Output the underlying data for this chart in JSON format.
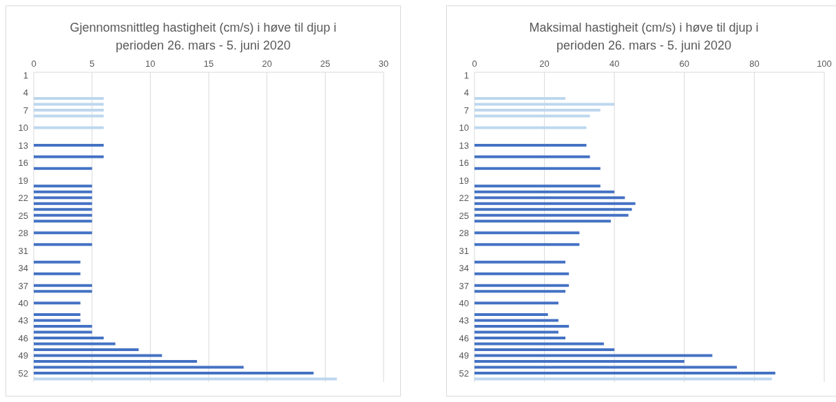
{
  "chart_data": [
    {
      "type": "bar",
      "orientation": "horizontal",
      "title": "Gjennomsnittleg hastigheit (cm/s) i høve til djup i perioden 26. mars - 5. juni 2020",
      "categories": [
        "1",
        null,
        null,
        "4",
        null,
        null,
        "7",
        null,
        null,
        "10",
        null,
        null,
        "13",
        null,
        null,
        "16",
        null,
        null,
        "19",
        null,
        null,
        "22",
        null,
        null,
        "25",
        null,
        null,
        "28",
        null,
        null,
        "31",
        null,
        null,
        "34",
        null,
        null,
        "37",
        null,
        null,
        "40",
        null,
        null,
        "43",
        null,
        null,
        "46",
        null,
        null,
        "49",
        null,
        null,
        "52",
        null
      ],
      "values": [
        null,
        null,
        null,
        null,
        6,
        6,
        6,
        6,
        null,
        6,
        null,
        null,
        6,
        null,
        6,
        null,
        5,
        null,
        null,
        5,
        5,
        5,
        5,
        5,
        5,
        5,
        null,
        5,
        null,
        5,
        null,
        null,
        4,
        null,
        4,
        null,
        5,
        5,
        null,
        4,
        null,
        4,
        4,
        5,
        5,
        6,
        7,
        9,
        11,
        14,
        18,
        24,
        26
      ],
      "colors": [
        "#4472c4",
        "#4472c4",
        "#4472c4",
        "#4472c4",
        "#bdd7ee",
        "#bdd7ee",
        "#bdd7ee",
        "#bdd7ee",
        "#4472c4",
        "#bdd7ee",
        "#4472c4",
        "#4472c4",
        "#4472c4",
        "#4472c4",
        "#4472c4",
        "#4472c4",
        "#4472c4",
        "#4472c4",
        "#4472c4",
        "#4472c4",
        "#4472c4",
        "#4472c4",
        "#4472c4",
        "#4472c4",
        "#4472c4",
        "#4472c4",
        "#4472c4",
        "#4472c4",
        "#4472c4",
        "#4472c4",
        "#4472c4",
        "#4472c4",
        "#4472c4",
        "#4472c4",
        "#4472c4",
        "#4472c4",
        "#4472c4",
        "#4472c4",
        "#4472c4",
        "#4472c4",
        "#4472c4",
        "#4472c4",
        "#4472c4",
        "#4472c4",
        "#4472c4",
        "#4472c4",
        "#4472c4",
        "#4472c4",
        "#4472c4",
        "#4472c4",
        "#4472c4",
        "#4472c4",
        "#bdd7ee"
      ],
      "xlim": [
        0,
        30
      ],
      "xticks": [
        0,
        5,
        10,
        15,
        20,
        25,
        30
      ],
      "grid": "x",
      "legend": false
    },
    {
      "type": "bar",
      "orientation": "horizontal",
      "title": "Maksimal hastigheit (cm/s) i høve til djup i perioden 26. mars - 5. juni 2020",
      "categories": [
        "1",
        null,
        null,
        "4",
        null,
        null,
        "7",
        null,
        null,
        "10",
        null,
        null,
        "13",
        null,
        null,
        "16",
        null,
        null,
        "19",
        null,
        null,
        "22",
        null,
        null,
        "25",
        null,
        null,
        "28",
        null,
        null,
        "31",
        null,
        null,
        "34",
        null,
        null,
        "37",
        null,
        null,
        "40",
        null,
        null,
        "43",
        null,
        null,
        "46",
        null,
        null,
        "49",
        null,
        null,
        "52",
        null
      ],
      "values": [
        null,
        null,
        null,
        null,
        26,
        40,
        36,
        33,
        null,
        32,
        null,
        null,
        32,
        null,
        33,
        null,
        36,
        null,
        null,
        36,
        40,
        43,
        46,
        45,
        44,
        39,
        null,
        30,
        null,
        30,
        null,
        null,
        26,
        null,
        27,
        null,
        27,
        26,
        null,
        24,
        null,
        21,
        24,
        27,
        24,
        26,
        37,
        40,
        68,
        60,
        75,
        86,
        85
      ],
      "colors": [
        "#4472c4",
        "#4472c4",
        "#4472c4",
        "#4472c4",
        "#bdd7ee",
        "#bdd7ee",
        "#bdd7ee",
        "#bdd7ee",
        "#4472c4",
        "#bdd7ee",
        "#4472c4",
        "#4472c4",
        "#4472c4",
        "#4472c4",
        "#4472c4",
        "#4472c4",
        "#4472c4",
        "#4472c4",
        "#4472c4",
        "#4472c4",
        "#4472c4",
        "#4472c4",
        "#4472c4",
        "#4472c4",
        "#4472c4",
        "#4472c4",
        "#4472c4",
        "#4472c4",
        "#4472c4",
        "#4472c4",
        "#4472c4",
        "#4472c4",
        "#4472c4",
        "#4472c4",
        "#4472c4",
        "#4472c4",
        "#4472c4",
        "#4472c4",
        "#4472c4",
        "#4472c4",
        "#4472c4",
        "#4472c4",
        "#4472c4",
        "#4472c4",
        "#4472c4",
        "#4472c4",
        "#4472c4",
        "#4472c4",
        "#4472c4",
        "#4472c4",
        "#4472c4",
        "#4472c4",
        "#bdd7ee"
      ],
      "xlim": [
        0,
        100
      ],
      "xticks": [
        0,
        20,
        40,
        60,
        80,
        100
      ],
      "grid": "x",
      "legend": false
    }
  ]
}
